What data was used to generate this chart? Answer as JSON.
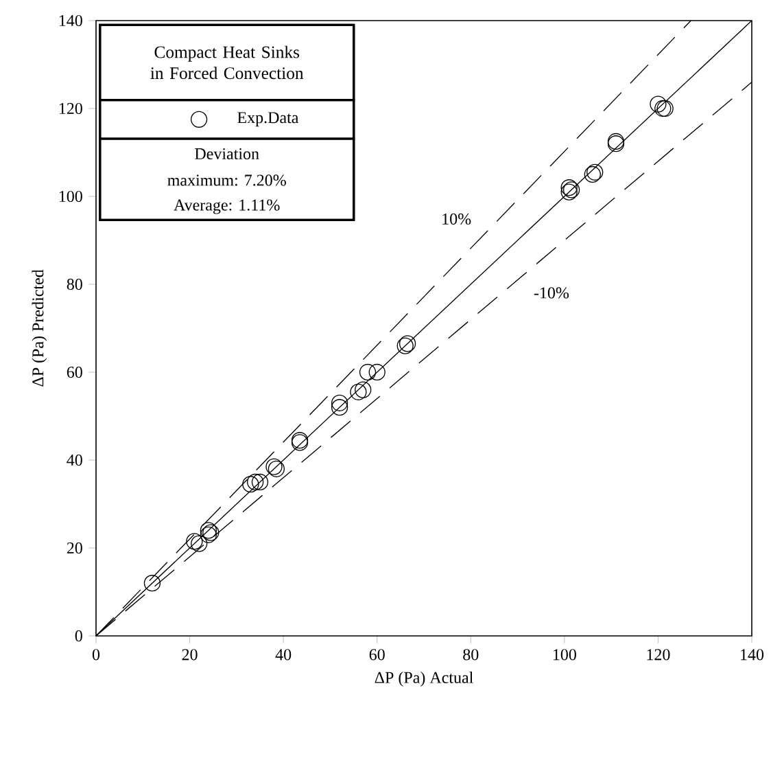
{
  "chart_data": {
    "type": "scatter",
    "legend": "top left",
    "legend_title": "Compact Heat Sinks in Forced Convection",
    "xlabel": "ΔP (Pa)   Actual",
    "ylabel": "ΔP (Pa)   Predicted",
    "xlim": [
      0,
      140
    ],
    "ylim": [
      0,
      140
    ],
    "xticks": [
      0,
      20,
      40,
      60,
      80,
      100,
      120,
      140
    ],
    "yticks": [
      0,
      20,
      40,
      60,
      80,
      100,
      120,
      140
    ],
    "series": [
      {
        "name": "Exp.Data",
        "color": "#000000",
        "marker": "circle",
        "x": [
          12,
          21,
          22,
          24,
          24,
          24.5,
          33,
          34,
          35,
          38,
          38.5,
          43.5,
          43.5,
          52,
          52,
          56,
          57,
          58,
          60,
          66,
          66.5,
          101,
          101,
          101.5,
          106,
          106.5,
          111,
          111,
          120,
          121,
          121.5
        ],
        "values": [
          12,
          21.5,
          21,
          23,
          24,
          23.5,
          34.5,
          35,
          35,
          38.5,
          38,
          44,
          44.5,
          52,
          53,
          55.5,
          56,
          60,
          60,
          66,
          66.5,
          101,
          102,
          101.5,
          105,
          105.5,
          112,
          112.5,
          121,
          120,
          120
        ]
      },
      {
        "type": "line",
        "color": "#000000",
        "line_style": "solid",
        "marker": "none",
        "x": [
          0,
          140
        ],
        "values": [
          0,
          140
        ]
      },
      {
        "name": "10%",
        "type": "line",
        "color": "#000000",
        "line_style": "dashed",
        "marker": "none",
        "x": [
          0,
          127
        ],
        "values": [
          0,
          140
        ]
      },
      {
        "name": "-10%",
        "type": "line",
        "color": "#000000",
        "line_style": "dashed",
        "marker": "none",
        "x": [
          0,
          140
        ],
        "values": [
          0,
          126
        ]
      }
    ],
    "annotations": [
      "Deviation",
      "maximum: 7.20%",
      "Average: 1.11%"
    ]
  }
}
